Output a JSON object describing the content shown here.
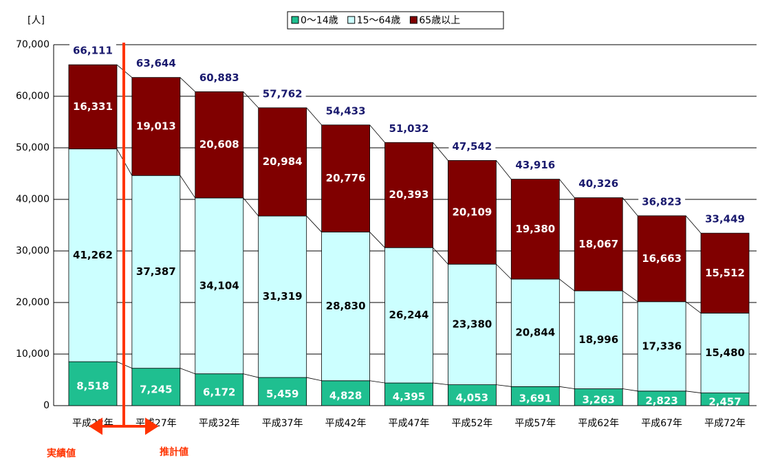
{
  "chart_data": {
    "type": "stacked_bar",
    "y_unit": "[人]",
    "categories": [
      "平成22年",
      "平成27年",
      "平成32年",
      "平成37年",
      "平成42年",
      "平成47年",
      "平成52年",
      "平成57年",
      "平成62年",
      "平成67年",
      "平成72年"
    ],
    "series": [
      {
        "name": "0～14歳",
        "color": "#1fbf90",
        "values": [
          8518,
          7245,
          6172,
          5459,
          4828,
          4395,
          4053,
          3691,
          3263,
          2823,
          2457
        ],
        "value_labels": [
          "8,518",
          "7,245",
          "6,172",
          "5,459",
          "4,828",
          "4,395",
          "4,053",
          "3,691",
          "3,263",
          "2,823",
          "2,457"
        ]
      },
      {
        "name": "15～64歳",
        "color": "#ccffff",
        "values": [
          41262,
          37387,
          34104,
          31319,
          28830,
          26244,
          23380,
          20844,
          18996,
          17336,
          15480
        ],
        "value_labels": [
          "41,262",
          "37,387",
          "34,104",
          "31,319",
          "28,830",
          "26,244",
          "23,380",
          "20,844",
          "18,996",
          "17,336",
          "15,480"
        ]
      },
      {
        "name": "65歳以上",
        "color": "#800000",
        "values": [
          16331,
          19013,
          20608,
          20984,
          20776,
          20393,
          20109,
          19380,
          18067,
          16663,
          15512
        ],
        "value_labels": [
          "16,331",
          "19,013",
          "20,608",
          "20,984",
          "20,776",
          "20,393",
          "20,109",
          "19,380",
          "18,067",
          "16,663",
          "15,512"
        ]
      }
    ],
    "totals": [
      66111,
      63644,
      60883,
      57762,
      54433,
      51032,
      47542,
      43916,
      40326,
      36823,
      33449
    ],
    "total_labels": [
      "66,111",
      "63,644",
      "60,883",
      "57,762",
      "54,433",
      "51,032",
      "47,542",
      "43,916",
      "40,326",
      "36,823",
      "33,449"
    ],
    "ylim": [
      0,
      70000
    ],
    "yticks": [
      0,
      {
        "value": 10000,
        "label": "10,000"
      },
      {
        "value": 20000,
        "label": "20,000"
      },
      {
        "value": 30000,
        "label": "30,000"
      },
      {
        "value": 40000,
        "label": "40,000"
      },
      {
        "value": 50000,
        "label": "50,000"
      },
      {
        "value": 60000,
        "label": "60,000"
      },
      {
        "value": 70000,
        "label": "70,000"
      }
    ],
    "grid": true,
    "legend": "top",
    "annotations": [
      "実績値",
      "推計値"
    ]
  }
}
